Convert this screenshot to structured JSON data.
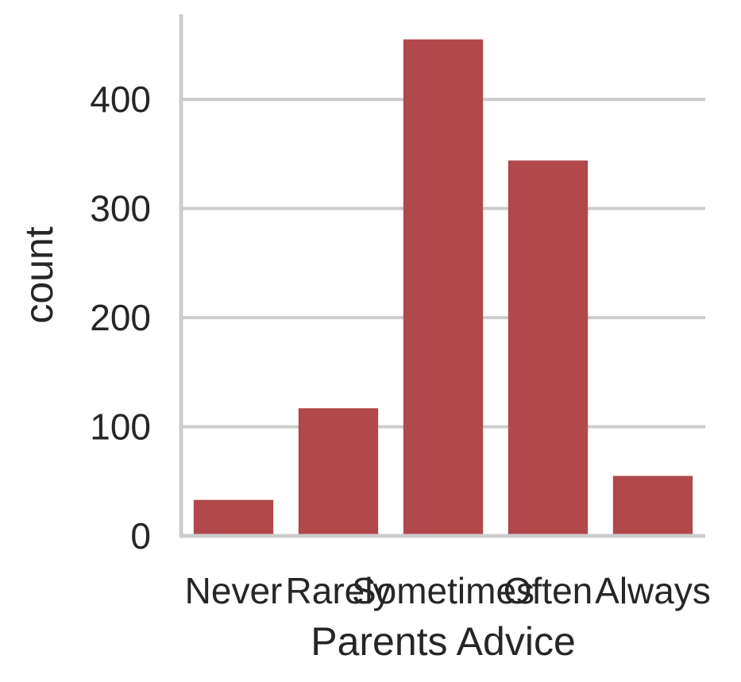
{
  "chart_data": {
    "type": "bar",
    "categories": [
      "Never",
      "Rarely",
      "Sometimes",
      "Often",
      "Always"
    ],
    "values": [
      33,
      117,
      455,
      344,
      55
    ],
    "title": "",
    "xlabel": "Parents Advice",
    "ylabel": "count",
    "ylim": [
      0,
      478
    ],
    "yticks": [
      0,
      100,
      200,
      300,
      400
    ],
    "grid": "y-only",
    "bar_color": "#b0484c",
    "grid_color": "#cccccc",
    "axis_color": "#cccccc",
    "text_color": "#262626"
  }
}
